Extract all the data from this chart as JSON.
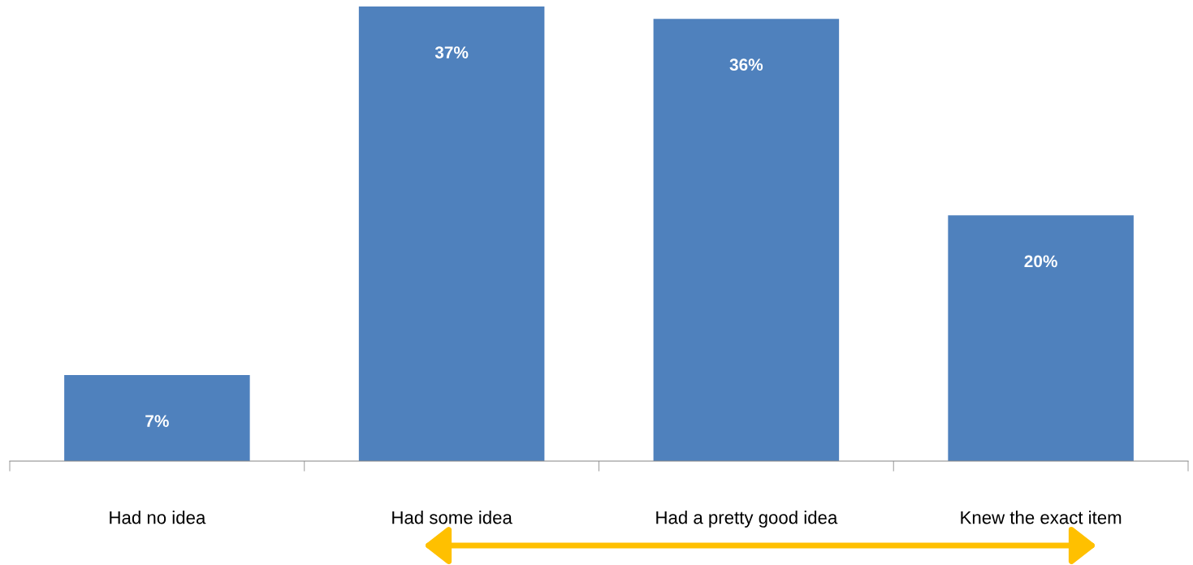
{
  "chart_data": {
    "type": "bar",
    "categories": [
      "Had no idea",
      "Had some idea",
      "Had a pretty good idea",
      "Knew the exact item"
    ],
    "values": [
      7,
      37,
      36,
      20
    ],
    "value_labels": [
      "7%",
      "37%",
      "36%",
      "20%"
    ],
    "color": "#4f81bd",
    "grid": false,
    "legend": false
  }
}
